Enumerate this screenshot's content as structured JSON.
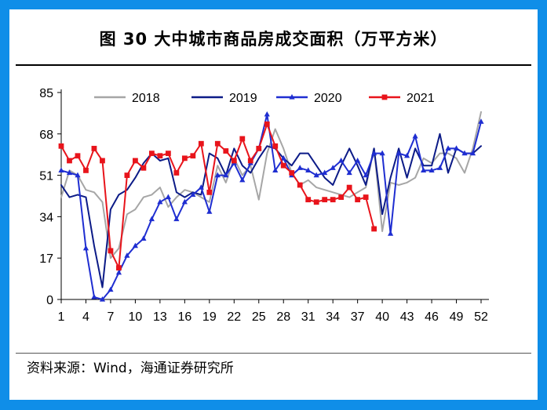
{
  "figure": {
    "title": "图 30 大中城市商品房成交面积（万平方米）",
    "source": "资料来源：Wind，海通证券研究所"
  },
  "chart_data": {
    "type": "line",
    "title": "图 30 大中城市商品房成交面积（万平方米）",
    "xlabel": "",
    "ylabel": "",
    "xlim": [
      1,
      52
    ],
    "ylim": [
      0,
      85
    ],
    "y_ticks": [
      0,
      17,
      34,
      51,
      68,
      85
    ],
    "x_ticks": [
      1,
      4,
      7,
      10,
      13,
      16,
      19,
      22,
      25,
      28,
      31,
      34,
      37,
      40,
      43,
      46,
      49,
      52
    ],
    "grid": false,
    "legend_position": "top",
    "series": [
      {
        "name": "2018",
        "color": "#a6a6a6",
        "marker": "none",
        "x": [
          1,
          2,
          3,
          4,
          5,
          6,
          7,
          8,
          9,
          10,
          11,
          12,
          13,
          14,
          15,
          16,
          17,
          18,
          19,
          20,
          21,
          22,
          23,
          24,
          25,
          26,
          27,
          28,
          29,
          30,
          31,
          32,
          33,
          34,
          35,
          36,
          37,
          38,
          39,
          40,
          41,
          42,
          43,
          44,
          45,
          46,
          47,
          48,
          49,
          50,
          51,
          52
        ],
        "y": [
          42,
          53,
          51,
          45,
          44,
          40,
          17,
          21,
          35,
          37,
          42,
          43,
          46,
          38,
          42,
          45,
          44,
          42,
          40,
          55,
          48,
          58,
          51,
          55,
          41,
          60,
          70,
          62,
          52,
          47,
          49,
          46,
          45,
          44,
          43,
          42,
          44,
          46,
          62,
          28,
          48,
          47,
          48,
          50,
          58,
          56,
          60,
          60,
          58,
          52,
          62,
          77
        ]
      },
      {
        "name": "2019",
        "color": "#0c1b87",
        "marker": "none",
        "x": [
          1,
          2,
          3,
          4,
          5,
          6,
          7,
          8,
          9,
          10,
          11,
          12,
          13,
          14,
          15,
          16,
          17,
          18,
          19,
          20,
          21,
          22,
          23,
          24,
          25,
          26,
          27,
          28,
          29,
          30,
          31,
          32,
          33,
          34,
          35,
          36,
          37,
          38,
          39,
          40,
          41,
          42,
          43,
          44,
          45,
          46,
          47,
          48,
          49,
          50,
          51,
          52
        ],
        "y": [
          47,
          42,
          43,
          42,
          22,
          5,
          37,
          43,
          45,
          50,
          56,
          60,
          57,
          58,
          44,
          42,
          44,
          43,
          60,
          58,
          51,
          62,
          55,
          52,
          58,
          63,
          62,
          58,
          55,
          60,
          60,
          55,
          50,
          47,
          55,
          62,
          55,
          47,
          62,
          35,
          50,
          62,
          50,
          62,
          55,
          55,
          68,
          52,
          62,
          60,
          60,
          63
        ]
      },
      {
        "name": "2020",
        "color": "#1f2ed1",
        "marker": "triangle",
        "x": [
          1,
          2,
          3,
          4,
          5,
          6,
          7,
          8,
          9,
          10,
          11,
          12,
          13,
          14,
          15,
          16,
          17,
          18,
          19,
          20,
          21,
          22,
          23,
          24,
          25,
          26,
          27,
          28,
          29,
          30,
          31,
          32,
          33,
          34,
          35,
          36,
          37,
          38,
          39,
          40,
          41,
          42,
          43,
          44,
          45,
          46,
          47,
          48,
          49,
          50,
          51,
          52
        ],
        "y": [
          53,
          52,
          51,
          21,
          1,
          0,
          4,
          11,
          18,
          22,
          25,
          33,
          40,
          42,
          33,
          40,
          43,
          46,
          36,
          51,
          51,
          56,
          49,
          56,
          62,
          76,
          53,
          58,
          51,
          54,
          53,
          51,
          52,
          54,
          57,
          52,
          57,
          51,
          60,
          60,
          27,
          60,
          59,
          67,
          53,
          53,
          54,
          62,
          62,
          60,
          60,
          73
        ]
      },
      {
        "name": "2021",
        "color": "#e8141b",
        "marker": "square",
        "x": [
          1,
          2,
          3,
          4,
          5,
          6,
          7,
          8,
          9,
          10,
          11,
          12,
          13,
          14,
          15,
          16,
          17,
          18,
          19,
          20,
          21,
          22,
          23,
          24,
          25,
          26,
          27,
          28,
          29,
          30,
          31,
          32,
          33,
          34,
          35,
          36,
          37,
          38,
          39
        ],
        "y": [
          63,
          57,
          59,
          53,
          62,
          57,
          20,
          13,
          51,
          57,
          54,
          60,
          59,
          60,
          52,
          58,
          59,
          64,
          44,
          64,
          61,
          57,
          66,
          57,
          62,
          72,
          63,
          55,
          52,
          47,
          41,
          40,
          41,
          41,
          42,
          46,
          41,
          42,
          29
        ]
      }
    ]
  }
}
